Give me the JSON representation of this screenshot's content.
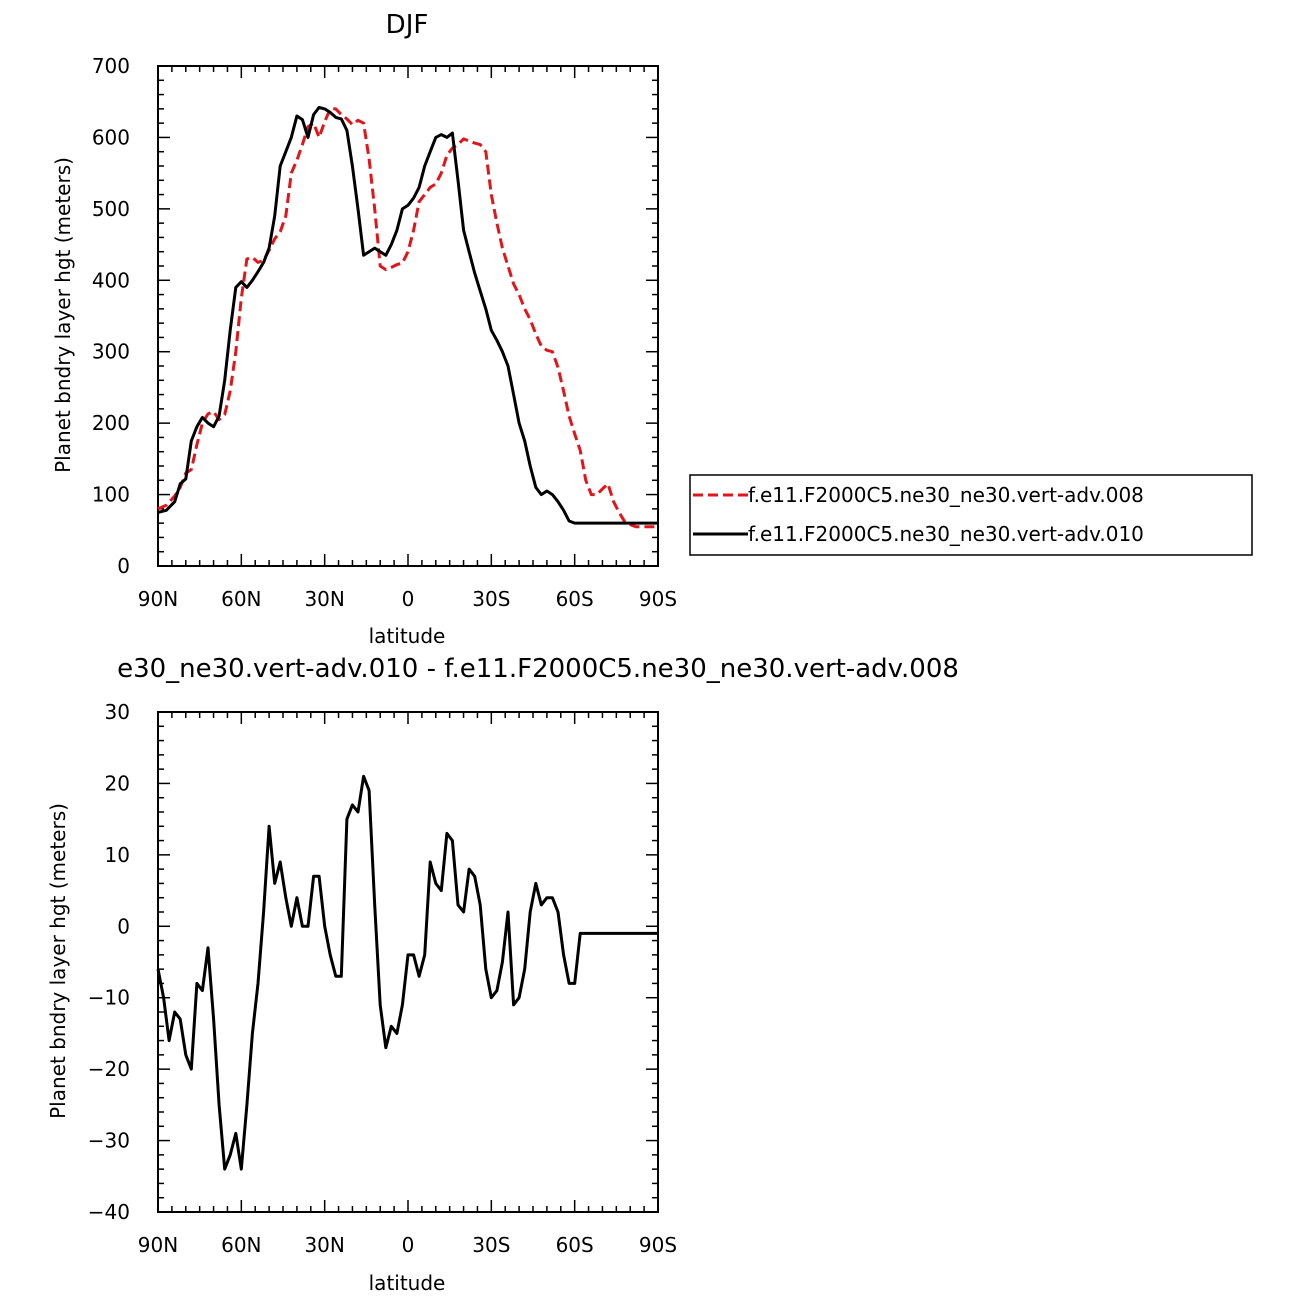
{
  "chart_data": [
    {
      "type": "line",
      "title": "DJF",
      "xlabel": "latitude",
      "ylabel": "Planet bndry layer hgt (meters)",
      "xlim": [
        -90,
        90
      ],
      "ylim": [
        0,
        700
      ],
      "x_ticks": [
        -90,
        -60,
        -30,
        0,
        30,
        60,
        90
      ],
      "x_tick_labels": [
        "90N",
        "60N",
        "30N",
        "0",
        "30S",
        "60S",
        "90S"
      ],
      "y_ticks": [
        0,
        100,
        200,
        300,
        400,
        500,
        600,
        700
      ],
      "y_tick_labels": [
        "0",
        "100",
        "200",
        "300",
        "400",
        "500",
        "600",
        "700"
      ],
      "legend_position": "right",
      "series": [
        {
          "name": "f.e11.F2000C5.ne30_ne30.vert-adv.008",
          "color": "#e0161b",
          "dash": "dashed",
          "x": [
            -90,
            -87,
            -84,
            -82,
            -80,
            -78,
            -76,
            -74,
            -72,
            -70,
            -68,
            -66,
            -64,
            -62,
            -60,
            -58,
            -56,
            -54,
            -52,
            -50,
            -48,
            -46,
            -44,
            -42,
            -40,
            -38,
            -36,
            -34,
            -32,
            -30,
            -28,
            -26,
            -24,
            -22,
            -20,
            -18,
            -16,
            -14,
            -12,
            -10,
            -8,
            -6,
            -4,
            -2,
            0,
            2,
            4,
            6,
            8,
            10,
            12,
            14,
            16,
            18,
            20,
            22,
            24,
            26,
            28,
            30,
            32,
            34,
            36,
            38,
            40,
            42,
            44,
            46,
            48,
            50,
            52,
            54,
            56,
            58,
            60,
            62,
            64,
            66,
            68,
            70,
            72,
            74,
            76,
            78,
            80,
            82,
            84,
            86,
            88,
            90
          ],
          "y": [
            80,
            85,
            98,
            110,
            130,
            135,
            170,
            200,
            213,
            216,
            205,
            212,
            245,
            300,
            375,
            430,
            432,
            425,
            428,
            442,
            458,
            468,
            490,
            550,
            568,
            590,
            615,
            620,
            600,
            622,
            640,
            640,
            632,
            626,
            618,
            624,
            620,
            570,
            500,
            420,
            415,
            418,
            422,
            424,
            440,
            470,
            510,
            520,
            530,
            535,
            550,
            575,
            585,
            590,
            598,
            595,
            592,
            590,
            580,
            520,
            480,
            445,
            420,
            395,
            380,
            360,
            345,
            325,
            308,
            302,
            300,
            278,
            245,
            210,
            185,
            162,
            120,
            100,
            100,
            108,
            115,
            90,
            75,
            62,
            58,
            55,
            55,
            55,
            55,
            55
          ],
          "_unused": true
        },
        {
          "name": "f.e11.F2000C5.ne30_ne30.vert-adv.010",
          "color": "#000000",
          "dash": "solid",
          "x": [
            -90,
            -87,
            -84,
            -82,
            -80,
            -78,
            -76,
            -74,
            -72,
            -70,
            -68,
            -66,
            -64,
            -62,
            -60,
            -58,
            -56,
            -54,
            -52,
            -50,
            -48,
            -46,
            -44,
            -42,
            -40,
            -38,
            -36,
            -34,
            -32,
            -30,
            -28,
            -26,
            -24,
            -22,
            -20,
            -18,
            -16,
            -14,
            -12,
            -10,
            -8,
            -6,
            -4,
            -2,
            0,
            2,
            4,
            6,
            8,
            10,
            12,
            14,
            16,
            18,
            20,
            22,
            24,
            26,
            28,
            30,
            32,
            34,
            36,
            38,
            40,
            42,
            44,
            46,
            48,
            50,
            52,
            54,
            56,
            58,
            60,
            62,
            64,
            66,
            68,
            70,
            72,
            74,
            76,
            78,
            80,
            82,
            84,
            86,
            88,
            90
          ],
          "y": [
            75,
            78,
            90,
            115,
            122,
            175,
            195,
            208,
            200,
            195,
            210,
            260,
            330,
            390,
            398,
            390,
            400,
            412,
            425,
            445,
            490,
            560,
            580,
            600,
            630,
            625,
            600,
            632,
            642,
            640,
            635,
            628,
            626,
            610,
            560,
            500,
            435,
            440,
            445,
            440,
            435,
            450,
            470,
            500,
            505,
            515,
            530,
            560,
            580,
            600,
            604,
            600,
            606,
            540,
            470,
            440,
            410,
            385,
            360,
            330,
            316,
            300,
            280,
            240,
            200,
            175,
            140,
            110,
            100,
            105,
            100,
            90,
            78,
            63,
            60,
            60,
            60,
            60,
            60,
            60,
            60,
            60,
            60,
            60,
            60,
            60,
            60,
            60,
            60,
            60
          ],
          "_unused": true
        }
      ]
    },
    {
      "type": "line",
      "title": "e30_ne30.vert-adv.010 - f.e11.F2000C5.ne30_ne30.vert-adv.008",
      "xlabel": "latitude",
      "ylabel": "Planet bndry layer hgt (meters)",
      "xlim": [
        -90,
        90
      ],
      "ylim": [
        -40,
        30
      ],
      "x_ticks": [
        -90,
        -60,
        -30,
        0,
        30,
        60,
        90
      ],
      "x_tick_labels": [
        "90N",
        "60N",
        "30N",
        "0",
        "30S",
        "60S",
        "90S"
      ],
      "y_ticks": [
        -40,
        -30,
        -20,
        -10,
        0,
        10,
        20,
        30
      ],
      "y_tick_labels": [
        "−40",
        "−30",
        "−20",
        "−10",
        "0",
        "10",
        "20",
        "30"
      ],
      "series": [
        {
          "color": "#000000",
          "dash": "solid",
          "x": [
            -90,
            -88,
            -86,
            -84,
            -82,
            -80,
            -78,
            -76,
            -74,
            -72,
            -70,
            -68,
            -66,
            -64,
            -62,
            -60,
            -58,
            -56,
            -54,
            -52,
            -50,
            -48,
            -46,
            -44,
            -42,
            -40,
            -38,
            -36,
            -34,
            -32,
            -30,
            -28,
            -26,
            -24,
            -22,
            -20,
            -18,
            -16,
            -14,
            -12,
            -10,
            -8,
            -6,
            -4,
            -2,
            0,
            2,
            4,
            6,
            8,
            10,
            12,
            14,
            16,
            18,
            20,
            22,
            24,
            26,
            28,
            30,
            32,
            34,
            36,
            38,
            40,
            42,
            44,
            46,
            48,
            50,
            52,
            54,
            56,
            58,
            60,
            62,
            64,
            66,
            68,
            70,
            72,
            74,
            76,
            78,
            80,
            82,
            84,
            86,
            88,
            90
          ],
          "y": [
            -6,
            -10,
            -16,
            -12,
            -13,
            -18,
            -20,
            -8,
            -9,
            -3,
            -13,
            -25,
            -34,
            -32,
            -29,
            -34,
            -25,
            -15,
            -8,
            2,
            14,
            6,
            9,
            4,
            0,
            4,
            0,
            0,
            7,
            7,
            0,
            -4,
            -7,
            -7,
            15,
            17,
            16,
            21,
            19,
            3,
            -11,
            -17,
            -14,
            -15,
            -11,
            -4,
            -4,
            -7,
            -4,
            9,
            6,
            5,
            13,
            12,
            3,
            2,
            8,
            7,
            3,
            -6,
            -10,
            -9,
            -5,
            2,
            -11,
            -10,
            -6,
            2,
            6,
            3,
            4,
            4,
            2,
            -4,
            -8,
            -8,
            -1,
            -1,
            -1,
            -1,
            -1,
            -1,
            -1,
            -1,
            -1,
            -1,
            -1,
            -1,
            -1,
            -1,
            -1
          ],
          "_unused": true
        }
      ]
    }
  ]
}
